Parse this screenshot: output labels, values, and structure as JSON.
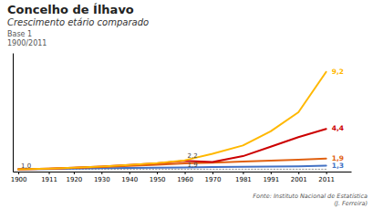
{
  "chart_data": {
    "type": "line",
    "title": "Concelho de Ílhavo",
    "subtitle": [
      "Crescimento etário comparado",
      "Base 1",
      "1900/2011"
    ],
    "source": [
      "Fonte: Instituto Nacional de Estatística",
      "(J. Ferreira)"
    ],
    "x": [
      1900,
      1911,
      1920,
      1930,
      1940,
      1950,
      1960,
      1970,
      1981,
      1991,
      2001,
      2011
    ],
    "series": [
      {
        "color": "#999999",
        "line_style": "dotted",
        "values": [
          1.0,
          1.0,
          1.0,
          1.0,
          1.0,
          1.0,
          1.0,
          1.0,
          1.0,
          1.0,
          1.0,
          1.0
        ]
      },
      {
        "color": "#4472C4",
        "line_style": "solid",
        "values": [
          1.0,
          1.02,
          1.05,
          1.08,
          1.1,
          1.12,
          1.15,
          1.18,
          1.2,
          1.22,
          1.24,
          1.3
        ]
      },
      {
        "color": "#E06010",
        "line_style": "solid",
        "values": [
          1.0,
          1.04,
          1.1,
          1.18,
          1.28,
          1.38,
          1.5,
          1.55,
          1.65,
          1.72,
          1.8,
          1.9
        ]
      },
      {
        "color": "#CC0000",
        "line_style": "solid",
        "values": [
          1.0,
          1.05,
          1.12,
          1.22,
          1.35,
          1.5,
          1.7,
          1.6,
          2.1,
          2.9,
          3.7,
          4.4
        ]
      },
      {
        "color": "#FFB800",
        "line_style": "solid",
        "values": [
          1.0,
          1.05,
          1.12,
          1.22,
          1.35,
          1.52,
          1.75,
          2.3,
          3.0,
          4.2,
          5.8,
          9.2
        ]
      }
    ],
    "annotations": [
      {
        "text": "1,0",
        "x": 1901,
        "y": 1.04,
        "position": "above"
      },
      {
        "text": "2,2",
        "x": 1961,
        "y": 1.87,
        "position": "above"
      },
      {
        "text": "1,9",
        "x": 1961,
        "y": 1.57,
        "position": "below"
      },
      {
        "text": "9,2",
        "x": 2013,
        "y": 9.2,
        "position": "right",
        "color": "#FFB800"
      },
      {
        "text": "4,4",
        "x": 2013,
        "y": 4.4,
        "position": "right",
        "color": "#CC0000"
      },
      {
        "text": "1,9",
        "x": 2013,
        "y": 1.9,
        "position": "right",
        "color": "#E06010"
      },
      {
        "text": "1,3",
        "x": 2013,
        "y": 1.3,
        "position": "right",
        "color": "#4472C4"
      }
    ],
    "xlim": [
      1898,
      2020
    ],
    "xticks": [
      1900,
      1911,
      1920,
      1930,
      1940,
      1950,
      1960,
      1970,
      1981,
      1991,
      2001,
      2011
    ],
    "ylim": [
      0.8,
      10.8
    ],
    "tick_labels": "x",
    "grid": false
  }
}
